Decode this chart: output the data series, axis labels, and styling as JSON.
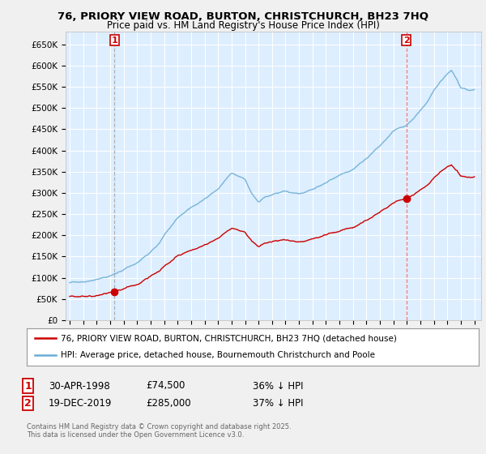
{
  "title_line1": "76, PRIORY VIEW ROAD, BURTON, CHRISTCHURCH, BH23 7HQ",
  "title_line2": "Price paid vs. HM Land Registry's House Price Index (HPI)",
  "ylim": [
    0,
    680000
  ],
  "yticks": [
    0,
    50000,
    100000,
    150000,
    200000,
    250000,
    300000,
    350000,
    400000,
    450000,
    500000,
    550000,
    600000,
    650000
  ],
  "ytick_labels": [
    "£0",
    "£50K",
    "£100K",
    "£150K",
    "£200K",
    "£250K",
    "£300K",
    "£350K",
    "£400K",
    "£450K",
    "£500K",
    "£550K",
    "£600K",
    "£650K"
  ],
  "hpi_color": "#6baed6",
  "price_color": "#cc0000",
  "vline1_color": "#aaaaaa",
  "vline2_color": "#ff6666",
  "marker1_year": 1998.33,
  "marker1_price": 74500,
  "marker2_year": 2019.97,
  "marker2_price": 285000,
  "legend_line1": "76, PRIORY VIEW ROAD, BURTON, CHRISTCHURCH, BH23 7HQ (detached house)",
  "legend_line2": "HPI: Average price, detached house, Bournemouth Christchurch and Poole",
  "table_row1_num": "1",
  "table_row1_date": "30-APR-1998",
  "table_row1_price": "£74,500",
  "table_row1_hpi": "36% ↓ HPI",
  "table_row2_num": "2",
  "table_row2_date": "19-DEC-2019",
  "table_row2_price": "£285,000",
  "table_row2_hpi": "37% ↓ HPI",
  "footnote": "Contains HM Land Registry data © Crown copyright and database right 2025.\nThis data is licensed under the Open Government Licence v3.0.",
  "bg_color": "#f0f0f0",
  "plot_bg_color": "#ddeeff",
  "grid_color": "#ffffff"
}
